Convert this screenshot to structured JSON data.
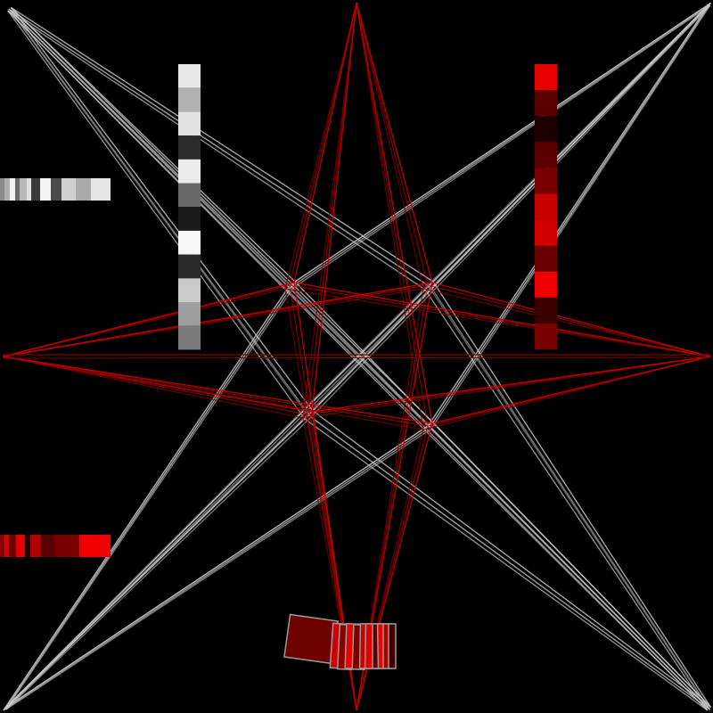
{
  "canvas": {
    "background": "#000000"
  },
  "palette": {
    "gray_line": "#c8c8c8",
    "red_line": "#cc0000",
    "red_line_dark": "#7a0000",
    "rect_stroke": "#9a9a9a"
  },
  "gray_vertical_swatches": [
    "#e8e8e8",
    "#b0b0b0",
    "#e2e2e2",
    "#2c2c2c",
    "#ececec",
    "#6a6a6a",
    "#1a1a1a",
    "#f6f6f6",
    "#2a2a2a",
    "#cacaca",
    "#9e9e9e",
    "#7a7a7a"
  ],
  "red_vertical_swatches": [
    "#e60000",
    "#5a0000",
    "#1e0000",
    "#5a0000",
    "#7a0000",
    "#c80000",
    "#d00000",
    "#6a0000",
    "#ee0000",
    "#3a0000",
    "#7a0000"
  ],
  "gray_horizontal_swatches": [
    "#8a8a8a",
    "#b0b0b0",
    "#f0f0f0",
    "#6a6a6a",
    "#b8b8b8",
    "#e0e0e0",
    "#3a3a3a",
    "#f4f4f4",
    "#4a4a4a",
    "#d0d0d0",
    "#aaaaaa",
    "#e6e6e6"
  ],
  "red_horizontal_swatches": [
    "#8a0000",
    "#d80000",
    "#6a0000",
    "#e20000",
    "#1e0000",
    "#b00000",
    "#5a0000",
    "#7a0000",
    "#f00000"
  ],
  "bottom_tiles": [
    "#6e0000",
    "#d00000",
    "#880000",
    "#e80000",
    "#7a0000",
    "#c80000",
    "#e00000",
    "#600000",
    "#f00000",
    "#b00000",
    "#400000"
  ]
}
